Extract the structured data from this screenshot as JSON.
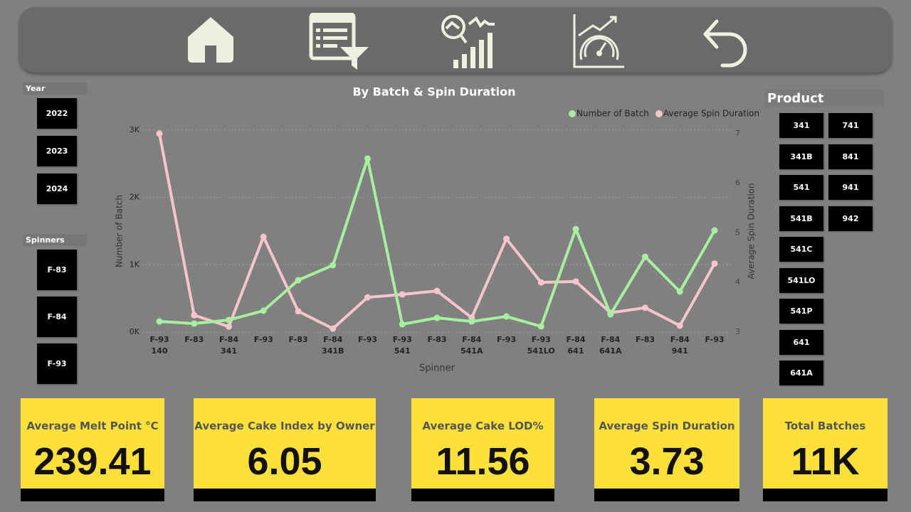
{
  "slicers": {
    "year": {
      "title": "Year",
      "items": [
        "2022",
        "2023",
        "2024"
      ]
    },
    "spinners": {
      "title": "Spinners",
      "items": [
        "F-83",
        "F-84",
        "F-93"
      ]
    },
    "product": {
      "title": "Product",
      "items": [
        "341",
        "741",
        "341B",
        "841",
        "541",
        "941",
        "541B",
        "942",
        "541C",
        "541LO",
        "541P",
        "641",
        "641A"
      ]
    }
  },
  "kpis": [
    {
      "label": "Average Melt Point °C",
      "value": "239.41"
    },
    {
      "label": "Average Cake Index by Owner",
      "value": "6.05"
    },
    {
      "label": "Average Cake LOD%",
      "value": "11.56"
    },
    {
      "label": "Average Spin Duration",
      "value": "3.73"
    },
    {
      "label": "Total Batches",
      "value": "11K"
    }
  ],
  "chart_data": {
    "type": "line",
    "title": "By Batch & Spin Duration",
    "x_label": "Spinner",
    "y_label": "Number of Batch",
    "y2_label": "Average Spin Duration",
    "groups": [
      {
        "label": "140",
        "categories": [
          "F-93"
        ]
      },
      {
        "label": "341",
        "categories": [
          "F-83",
          "F-84",
          "F-93"
        ]
      },
      {
        "label": "341B",
        "categories": [
          "F-83",
          "F-84",
          "F-93"
        ]
      },
      {
        "label": "541",
        "categories": [
          "F-93"
        ]
      },
      {
        "label": "541A",
        "categories": [
          "F-83",
          "F-84",
          "F-93"
        ]
      },
      {
        "label": "541LO",
        "categories": [
          "F-93"
        ]
      },
      {
        "label": "641",
        "categories": [
          "F-84"
        ]
      },
      {
        "label": "641A",
        "categories": [
          "F-84"
        ]
      },
      {
        "label": "941",
        "categories": [
          "F-83",
          "F-84",
          "F-93"
        ]
      }
    ],
    "series": [
      {
        "name": "Number of Batch",
        "color": "#a6ef9e",
        "values": [
          158,
          127,
          180,
          317,
          771,
          993,
          2577,
          116,
          211,
          158,
          232,
          84,
          1531,
          264,
          1119,
          602,
          1510
        ]
      },
      {
        "name": "Average Spin Duration",
        "color": "#f7c4cd",
        "axis": "y2",
        "values": [
          7.0,
          3.34,
          3.11,
          4.92,
          3.42,
          3.07,
          3.7,
          3.76,
          3.83,
          3.29,
          4.88,
          4.0,
          4.02,
          3.39,
          3.49,
          3.13,
          4.38
        ]
      }
    ],
    "ylim": [
      0,
      3000
    ],
    "yticks": [
      {
        "value": 0,
        "label": "0K"
      },
      {
        "value": 1000,
        "label": "1K"
      },
      {
        "value": 2000,
        "label": "2K"
      },
      {
        "value": 3000,
        "label": "3K"
      }
    ],
    "y2lim": [
      3,
      7.07
    ],
    "y2ticks": [
      3,
      4,
      5,
      6,
      7
    ],
    "grid": true,
    "legend": "top-right"
  }
}
